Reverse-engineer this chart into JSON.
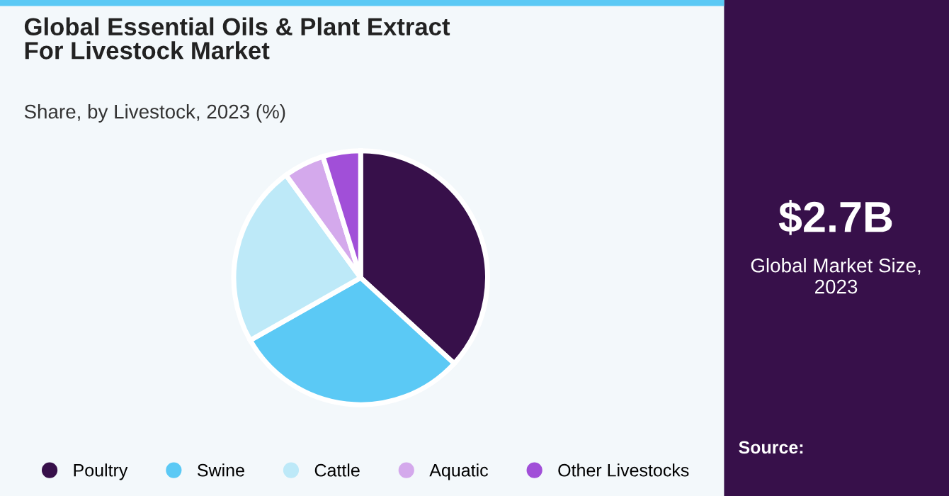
{
  "chart_data": {
    "type": "pie",
    "title": "Global Essential Oils & Plant Extract\nFor Livestock Market",
    "subtitle": "Share, by Livestock, 2023 (%)",
    "categories": [
      "Poultry",
      "Swine",
      "Cattle",
      "Aquatic",
      "Other Livestocks"
    ],
    "values": [
      36.8,
      30.0,
      23.2,
      5.2,
      4.8
    ],
    "colors": [
      "#37104a",
      "#5bc9f5",
      "#bde9f8",
      "#d4a9ec",
      "#a14fd8"
    ],
    "legend": "bottom",
    "annotations": [
      "$2.7B",
      "Global Market Size,\n2023",
      "Source:"
    ]
  }
}
